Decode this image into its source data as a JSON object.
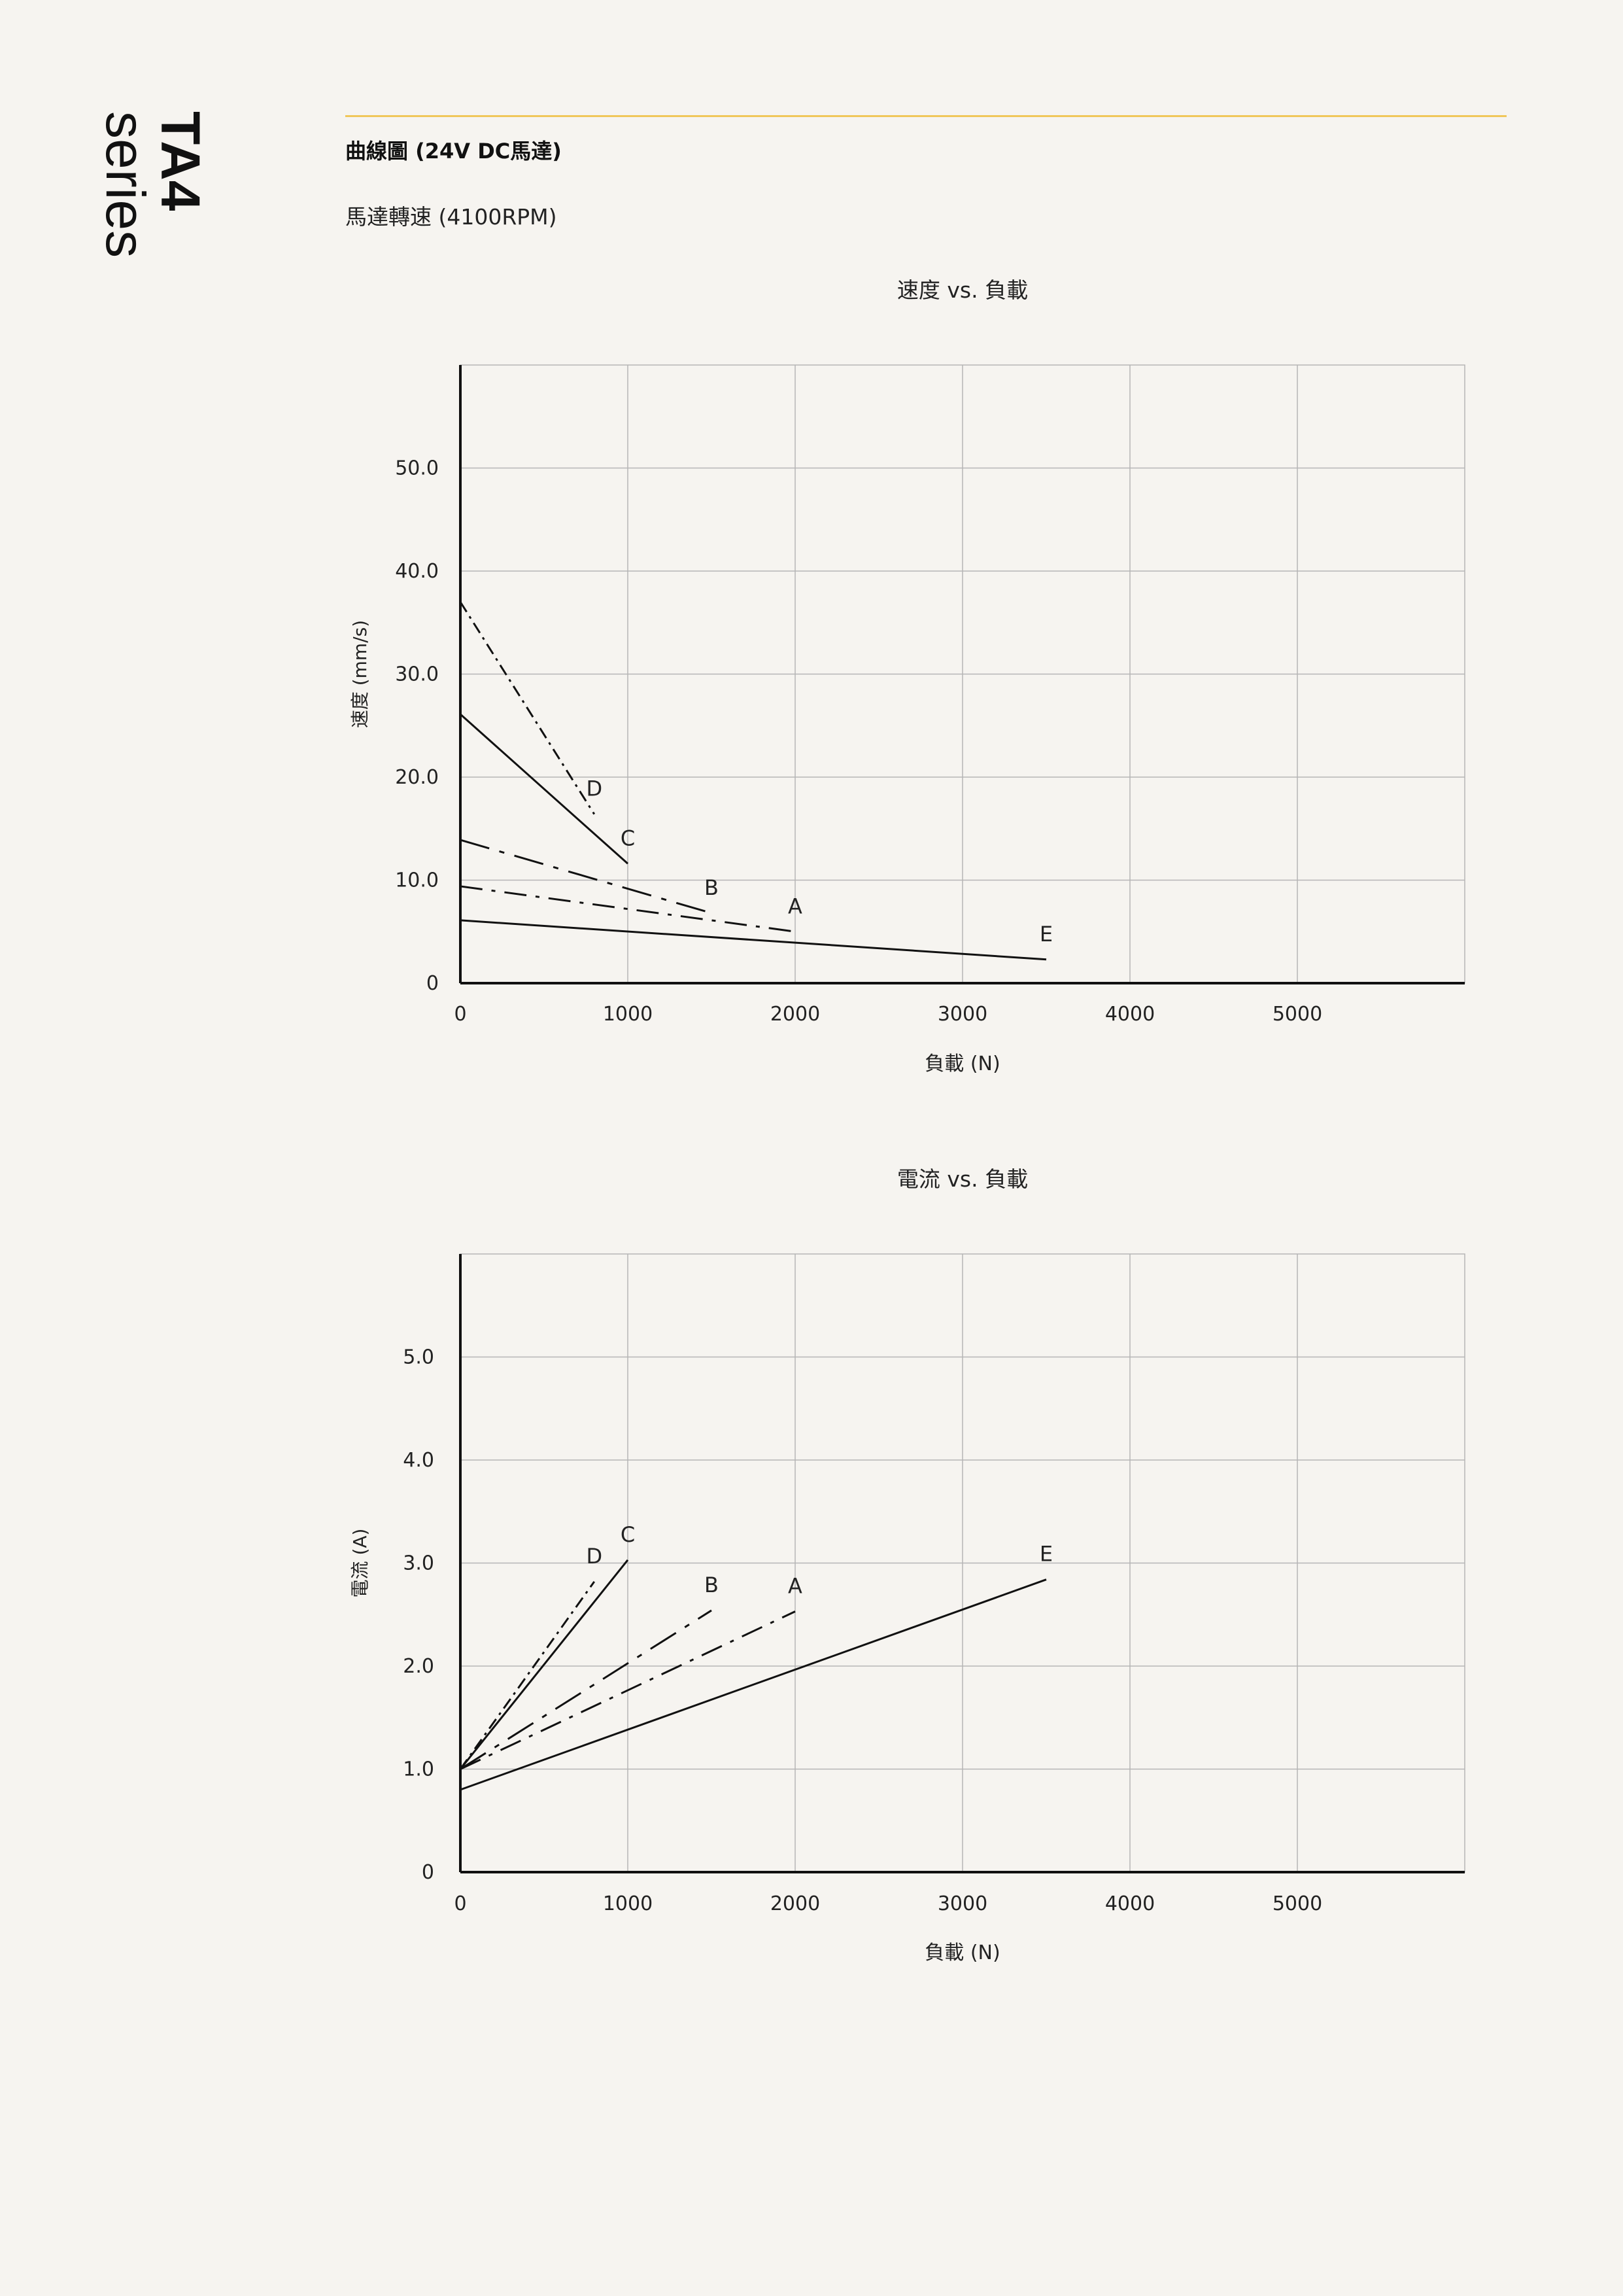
{
  "header": {
    "model": "TA4",
    "series_word": "series",
    "section_title": "曲線圖 (24V DC馬達)",
    "motor_speed": "馬達轉速 (4100RPM)"
  },
  "colors": {
    "accent_rule": "#f0c75a",
    "line": "#111111",
    "grid": "#b5b5b5",
    "background": "#f6f4f0"
  },
  "chart_data": [
    {
      "type": "line",
      "title": "速度 vs. 負載",
      "xlabel": "負載 (N)",
      "ylabel": "速度 (mm/s)",
      "xlim": [
        0,
        6000
      ],
      "ylim": [
        0,
        60
      ],
      "xticks": [
        "0",
        "1000",
        "2000",
        "3000",
        "4000",
        "5000"
      ],
      "xtick_values": [
        0,
        1000,
        2000,
        3000,
        4000,
        5000
      ],
      "yticks": [
        "0",
        "10.0",
        "20.0",
        "30.0",
        "40.0",
        "50.0"
      ],
      "ytick_values": [
        0,
        10,
        20,
        30,
        40,
        50
      ],
      "grid": true,
      "series": [
        {
          "name": "A",
          "style": "dashdot",
          "x": [
            0,
            2000
          ],
          "y": [
            9.4,
            5.0
          ]
        },
        {
          "name": "B",
          "style": "dashdot-long",
          "x": [
            0,
            1500
          ],
          "y": [
            13.9,
            6.8
          ]
        },
        {
          "name": "C",
          "style": "solid",
          "x": [
            0,
            1000
          ],
          "y": [
            26.1,
            11.6
          ]
        },
        {
          "name": "D",
          "style": "dashdot-fine",
          "x": [
            0,
            800
          ],
          "y": [
            37.0,
            16.4
          ]
        },
        {
          "name": "E",
          "style": "solid",
          "x": [
            0,
            3500
          ],
          "y": [
            6.1,
            2.3
          ]
        }
      ]
    },
    {
      "type": "line",
      "title": "電流 vs. 負載",
      "xlabel": "負載 (N)",
      "ylabel": "電流 (A)",
      "xlim": [
        0,
        6000
      ],
      "ylim": [
        0,
        6
      ],
      "xticks": [
        "0",
        "1000",
        "2000",
        "3000",
        "4000",
        "5000"
      ],
      "xtick_values": [
        0,
        1000,
        2000,
        3000,
        4000,
        5000
      ],
      "yticks": [
        "0",
        "1.0",
        "2.0",
        "3.0",
        "4.0",
        "5.0"
      ],
      "ytick_values": [
        0,
        1,
        2,
        3,
        4,
        5
      ],
      "grid": true,
      "series": [
        {
          "name": "A",
          "style": "dashdot",
          "x": [
            0,
            2000
          ],
          "y": [
            1.0,
            2.53
          ]
        },
        {
          "name": "B",
          "style": "dashdot-long",
          "x": [
            0,
            1500
          ],
          "y": [
            1.0,
            2.54
          ]
        },
        {
          "name": "C",
          "style": "solid",
          "x": [
            0,
            1000
          ],
          "y": [
            1.0,
            3.03
          ]
        },
        {
          "name": "D",
          "style": "dashdot-fine",
          "x": [
            0,
            800
          ],
          "y": [
            1.0,
            2.82
          ]
        },
        {
          "name": "E",
          "style": "solid",
          "x": [
            0,
            3500
          ],
          "y": [
            0.8,
            2.84
          ]
        }
      ]
    }
  ]
}
